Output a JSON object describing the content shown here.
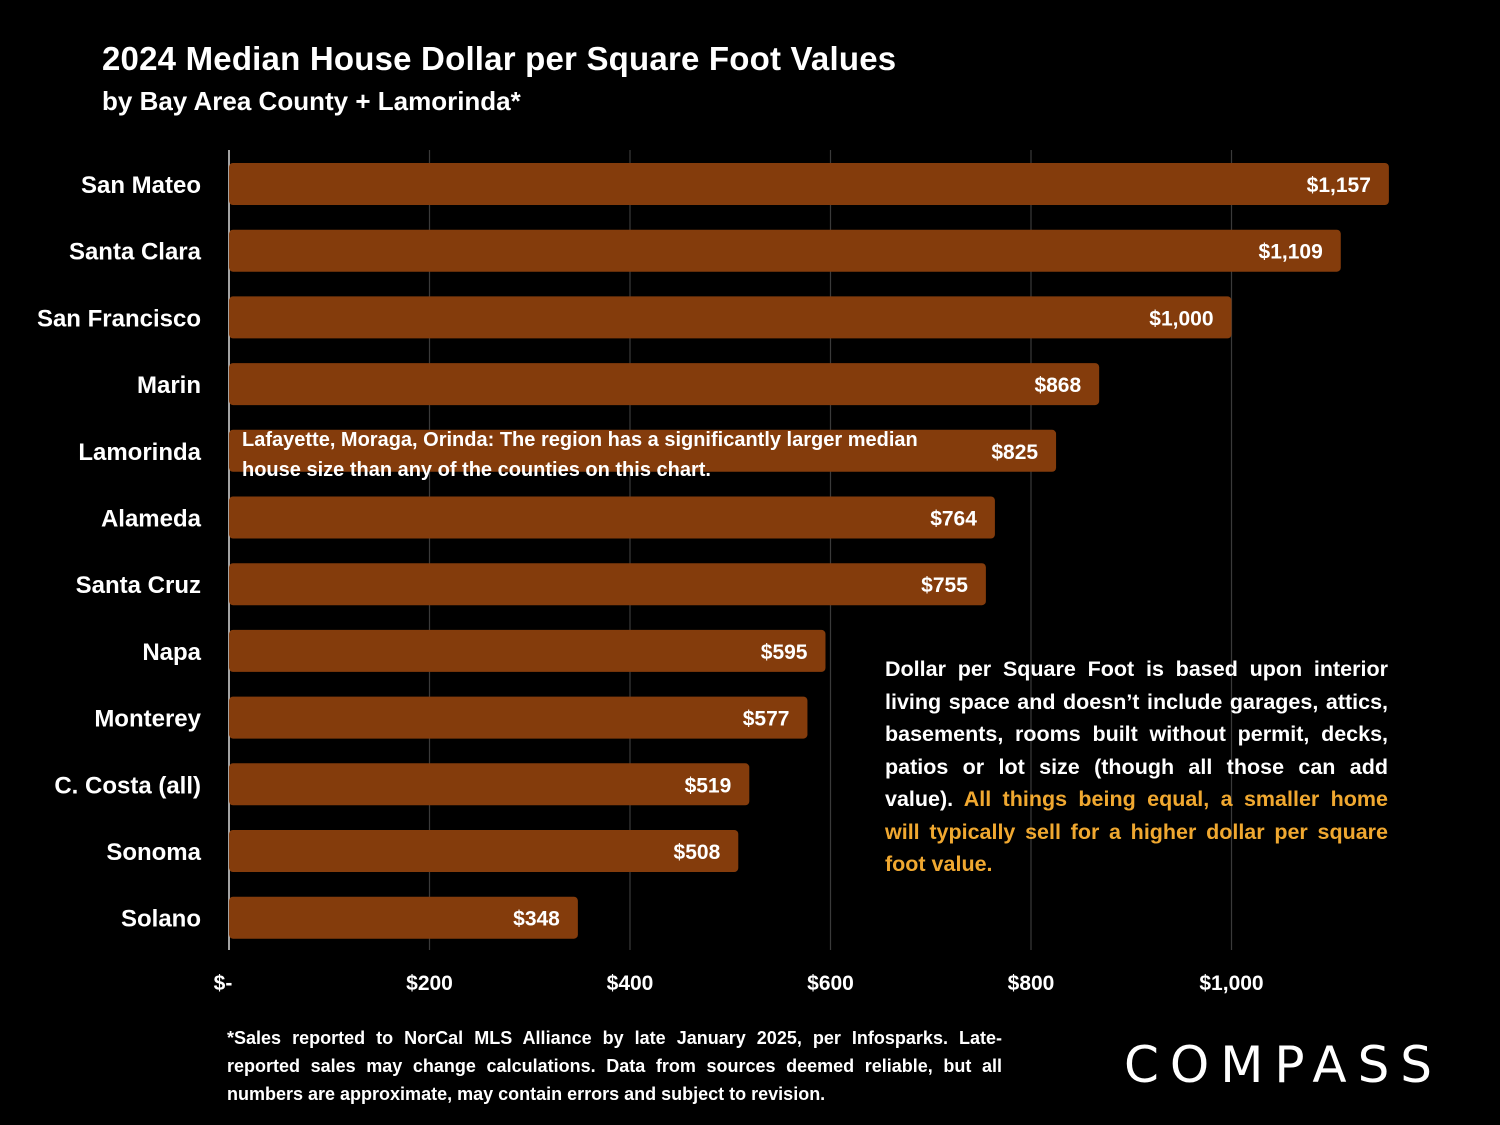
{
  "chart_data": {
    "type": "bar",
    "orientation": "horizontal",
    "title": "2024 Median House Dollar per Square Foot Values",
    "subtitle": "by Bay Area County + Lamorinda*",
    "categories": [
      "San Mateo",
      "Santa Clara",
      "San Francisco",
      "Marin",
      "Lamorinda",
      "Alameda",
      "Santa Cruz",
      "Napa",
      "Monterey",
      "C. Costa (all)",
      "Sonoma",
      "Solano"
    ],
    "values": [
      1157,
      1109,
      1000,
      868,
      825,
      764,
      755,
      595,
      577,
      519,
      508,
      348
    ],
    "data_labels": [
      "$1,157",
      "$1,109",
      "$1,000",
      "$868",
      "$825",
      "$764",
      "$755",
      "$595",
      "$577",
      "$519",
      "$508",
      "$348"
    ],
    "xlim": [
      0,
      1200
    ],
    "x_ticks": [
      0,
      200,
      400,
      600,
      800,
      1000
    ],
    "x_tick_labels": [
      "$-",
      "$200",
      "$400",
      "$600",
      "$800",
      "$1,000"
    ],
    "grid": true,
    "bar_color": "#843c0c",
    "background": "#000000"
  },
  "annotations": {
    "lamorinda_note": "Lafayette, Moraga, Orinda:  The region has a significantly larger median house size than any of the counties on this chart.",
    "dpsf_note_plain": "Dollar per Square Foot is based upon interior living space and doesn’t include garages, attics, basements, rooms built without permit, decks, patios or lot size (though all those can add value). ",
    "dpsf_note_highlight": "All things being equal, a smaller home will typically sell for a higher dollar per square foot value.",
    "highlight_color": "#f0a830"
  },
  "footnote": "*Sales reported to NorCal MLS Alliance by late January 2025, per Infosparks. Late-reported sales may change calculations. Data from sources deemed reliable, but all numbers are approximate, may contain errors and subject to revision.",
  "logo": "COMPASS"
}
